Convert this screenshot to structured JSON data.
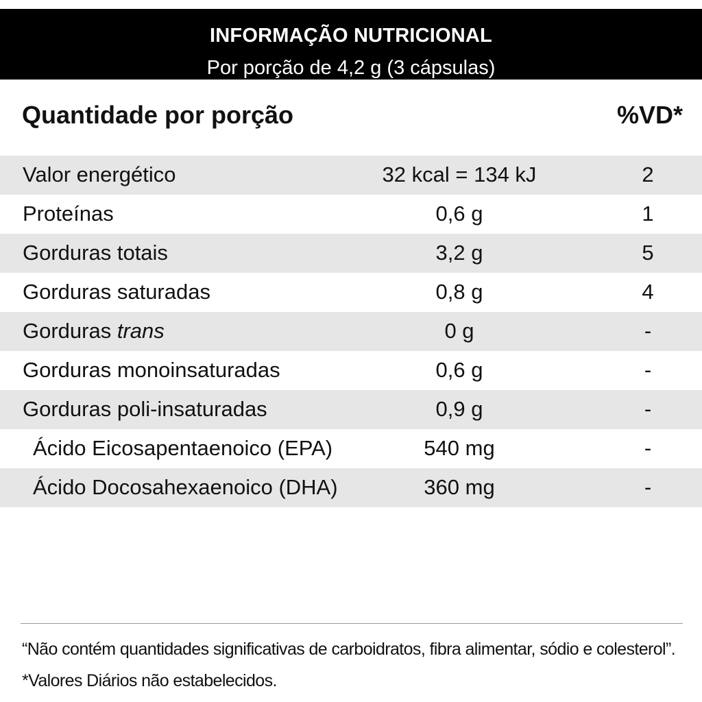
{
  "header": {
    "title": "INFORMAÇÃO NUTRICIONAL",
    "subtitle": "Por porção de 4,2 g (3 cápsulas)"
  },
  "columns": {
    "quantity": "Quantidade por porção",
    "vd": "%VD*"
  },
  "rows": [
    {
      "name": "Valor energético",
      "amount": "32 kcal = 134 kJ",
      "vd": "2"
    },
    {
      "name": "Proteínas",
      "amount": "0,6 g",
      "vd": "1"
    },
    {
      "name": "Gorduras totais",
      "amount": "3,2 g",
      "vd": "5"
    },
    {
      "name": "Gorduras saturadas",
      "amount": "0,8 g",
      "vd": "4"
    },
    {
      "name": "Gorduras ",
      "name_italic": "trans",
      "amount": "0 g",
      "vd": "-"
    },
    {
      "name": "Gorduras monoinsaturadas",
      "amount": "0,6 g",
      "vd": "-"
    },
    {
      "name": "Gorduras poli-insaturadas",
      "amount": "0,9 g",
      "vd": "-"
    },
    {
      "name": "Ácido Eicosapentaenoico (EPA)",
      "amount": "540 mg",
      "vd": "-"
    },
    {
      "name": "Ácido Docosahexaenoico (DHA)",
      "amount": "360 mg",
      "vd": "-"
    }
  ],
  "footnotes": {
    "line1": "“Não contém quantidades significativas de carboidratos, fibra alimentar, sódio e colesterol”.",
    "line2": "*Valores Diários não estabelecidos."
  },
  "colors": {
    "header_bg": "#000000",
    "header_text": "#ffffff",
    "row_shade": "#e6e6e6",
    "text": "#111111"
  }
}
